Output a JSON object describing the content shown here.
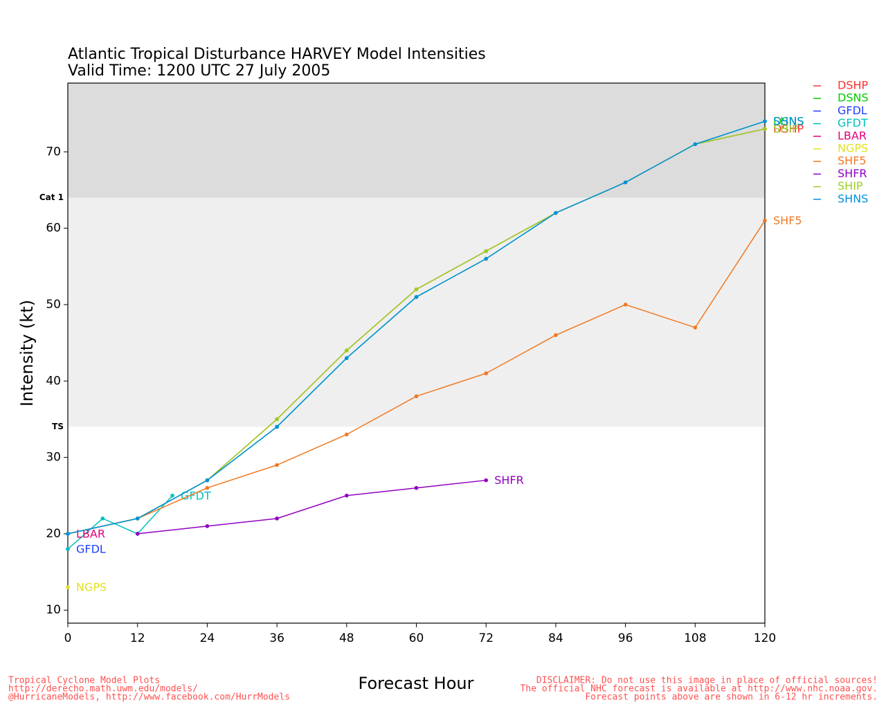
{
  "chart_data": {
    "type": "line",
    "title": "Atlantic Tropical Disturbance HARVEY Model Intensities",
    "subtitle": "Valid Time: 1200 UTC 27 July 2005",
    "x_label": "Forecast Hour",
    "y_label": "Intensity (kt)",
    "xlim": [
      0,
      120
    ],
    "xticks": [
      0,
      12,
      24,
      36,
      48,
      60,
      72,
      84,
      96,
      108,
      120
    ],
    "ylim": [
      8.3,
      79
    ],
    "yticks": [
      10,
      20,
      30,
      40,
      50,
      60,
      70
    ],
    "thresholds": [
      {
        "label": "Cat 1",
        "value": 64,
        "color": "#dcdcdc"
      },
      {
        "label": "TS",
        "value": 34,
        "color": "#efefef"
      }
    ],
    "series": [
      {
        "name": "DSHP",
        "color": "#ff3030",
        "x": [
          0,
          12,
          24,
          36,
          48,
          60,
          72,
          84,
          96,
          108,
          120
        ],
        "values": [
          20,
          22,
          27,
          35,
          44,
          52,
          57,
          62,
          66,
          71,
          73
        ]
      },
      {
        "name": "DSNS",
        "color": "#00cc00",
        "x": [
          0,
          12,
          24,
          36,
          48,
          60,
          72,
          84,
          96,
          108,
          120
        ],
        "values": [
          20,
          22,
          27,
          34,
          43,
          51,
          56,
          62,
          66,
          71,
          74
        ]
      },
      {
        "name": "GFDL",
        "color": "#2040ff",
        "x": [
          0
        ],
        "values": [
          18
        ]
      },
      {
        "name": "GFDT",
        "color": "#00c0c0",
        "x": [
          0,
          6,
          12,
          18
        ],
        "values": [
          18,
          22,
          20,
          25
        ]
      },
      {
        "name": "LBAR",
        "color": "#e0007a",
        "x": [
          0
        ],
        "values": [
          20
        ]
      },
      {
        "name": "NGPS",
        "color": "#e0e020",
        "x": [
          0
        ],
        "values": [
          13
        ]
      },
      {
        "name": "SHF5",
        "color": "#f07820",
        "x": [
          0,
          12,
          24,
          36,
          48,
          60,
          72,
          84,
          96,
          108,
          120
        ],
        "values": [
          20,
          22,
          26,
          29,
          33,
          38,
          41,
          46,
          50,
          47,
          61
        ]
      },
      {
        "name": "SHFR",
        "color": "#9000c0",
        "x": [
          12,
          24,
          36,
          48,
          60,
          72
        ],
        "values": [
          20,
          21,
          22,
          25,
          26,
          27
        ]
      },
      {
        "name": "SHIP",
        "color": "#99d020",
        "x": [
          0,
          12,
          24,
          36,
          48,
          60,
          72,
          84,
          96,
          108,
          120
        ],
        "values": [
          20,
          22,
          27,
          35,
          44,
          52,
          57,
          62,
          66,
          71,
          73
        ]
      },
      {
        "name": "SHNS",
        "color": "#0090e0",
        "x": [
          0,
          12,
          24,
          36,
          48,
          60,
          72,
          84,
          96,
          108,
          120
        ],
        "values": [
          20,
          22,
          27,
          34,
          43,
          51,
          56,
          62,
          66,
          71,
          74
        ]
      }
    ],
    "footer_left": [
      "Tropical Cyclone Model Plots",
      "http://derecho.math.uwm.edu/models/",
      "@HurricaneModels, http://www.facebook.com/HurrModels"
    ],
    "footer_right": [
      "DISCLAIMER: Do not use this image in place of official sources!",
      "The official NHC forecast is available at http://www.nhc.noaa.gov.",
      "Forecast points above are shown in 6-12 hr increments."
    ]
  }
}
